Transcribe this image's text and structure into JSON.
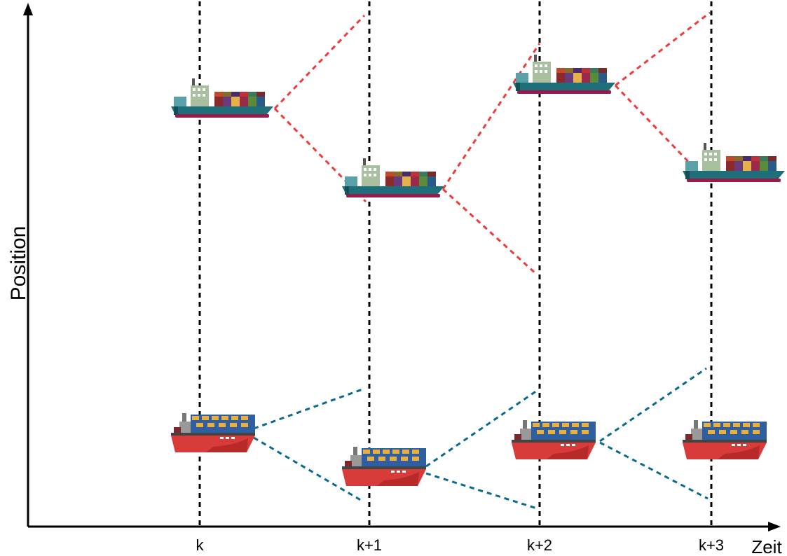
{
  "axes": {
    "y_label": "Position",
    "x_label": "Zeit"
  },
  "time_ticks": [
    {
      "label": "k"
    },
    {
      "label": "k+1"
    },
    {
      "label": "k+2"
    },
    {
      "label": "k+3"
    }
  ],
  "colors": {
    "axis": "#000000",
    "red_path": "#ef3b3b",
    "blue_path": "#0a6a8e",
    "cargo_hull": "#1f6f7a",
    "tanker_hull": "#d93a3a"
  },
  "vessels": [
    {
      "type": "container-ship",
      "icon": "container-ship-icon"
    },
    {
      "type": "feeder-ship",
      "icon": "feeder-ship-icon"
    }
  ]
}
